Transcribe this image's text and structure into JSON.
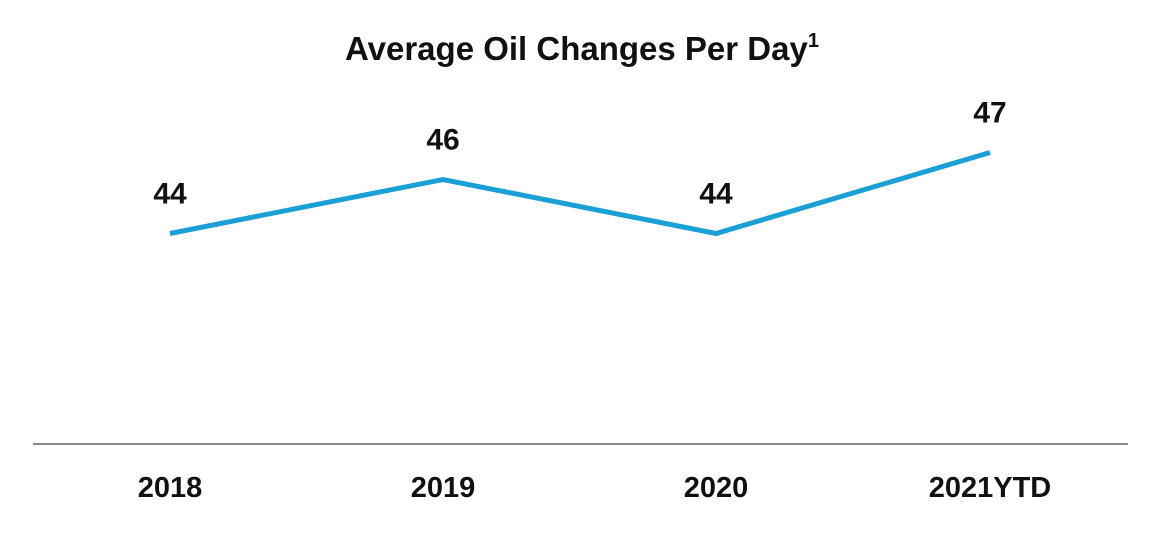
{
  "chart_data": {
    "type": "line",
    "title": "Average Oil Changes Per Day",
    "title_superscript": "1",
    "categories": [
      "2018",
      "2019",
      "2020",
      "2021YTD"
    ],
    "series": [
      {
        "values": [
          44,
          46,
          44,
          47
        ]
      }
    ],
    "data_labels": [
      "44",
      "46",
      "44",
      "47"
    ],
    "xlabel": "",
    "ylabel": "",
    "y_axis_visible": false,
    "grid": false,
    "legend": "none",
    "line_color": "#1a9fd6",
    "axis_color": "#888888",
    "text_color": "#111111"
  }
}
